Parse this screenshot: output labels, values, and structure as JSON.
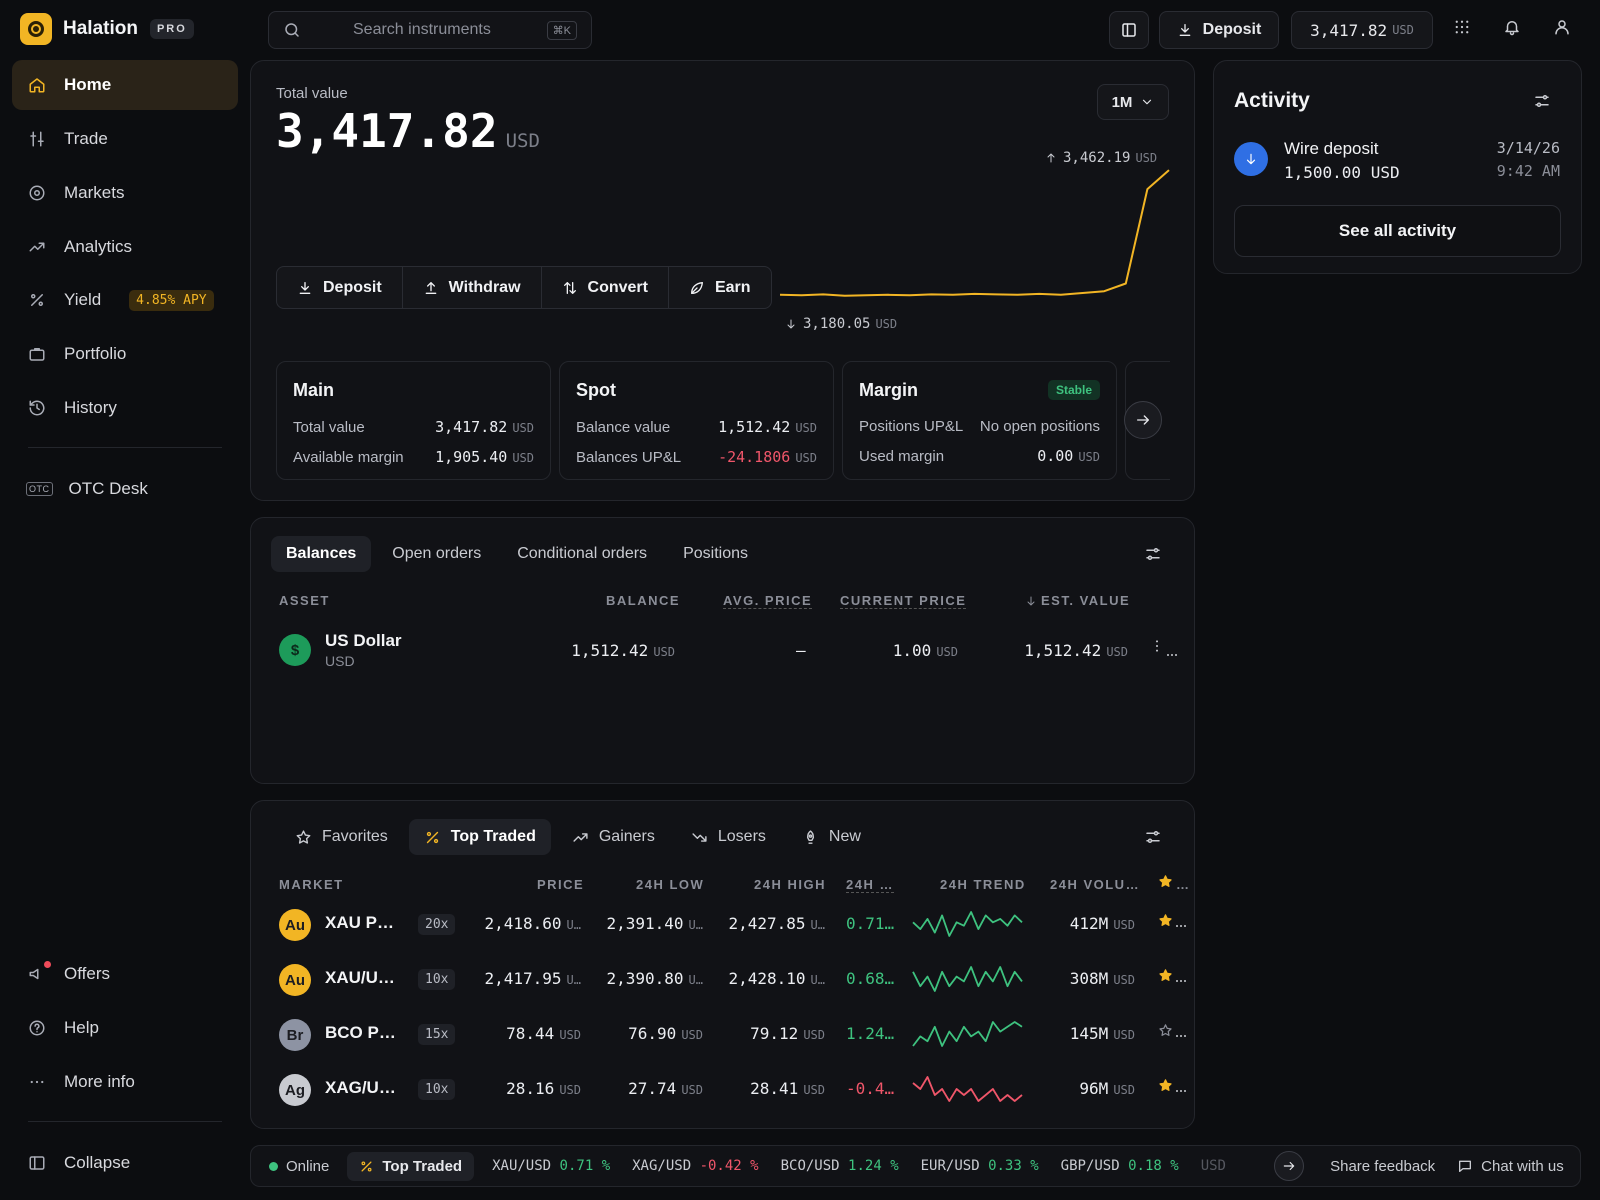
{
  "brand": {
    "name": "Halation",
    "badge": "PRO"
  },
  "nav": {
    "items": [
      {
        "label": "Home",
        "icon": "home-icon"
      },
      {
        "label": "Trade",
        "icon": "trade-icon"
      },
      {
        "label": "Markets",
        "icon": "markets-icon"
      },
      {
        "label": "Analytics",
        "icon": "analytics-icon"
      },
      {
        "label": "Yield",
        "icon": "percent-icon",
        "badge": "4.85% APY"
      },
      {
        "label": "Portfolio",
        "icon": "briefcase-icon"
      },
      {
        "label": "History",
        "icon": "history-icon"
      }
    ],
    "otc": {
      "label": "OTC Desk",
      "icon_text": "OTC"
    },
    "bottom": [
      {
        "label": "Offers",
        "icon": "megaphone-icon"
      },
      {
        "label": "Help",
        "icon": "help-icon"
      },
      {
        "label": "More info",
        "icon": "more-icon"
      }
    ],
    "collapse": "Collapse"
  },
  "topbar": {
    "search_placeholder": "Search instruments",
    "search_kbd": "⌘K",
    "deposit_label": "Deposit",
    "balance_value": "3,417.82",
    "balance_unit": "USD"
  },
  "overview": {
    "total_label": "Total value",
    "total_value": "3,417.82",
    "total_unit": "USD",
    "range": "1M",
    "high_value": "3,462.19",
    "high_unit": "USD",
    "low_value": "3,180.05",
    "low_unit": "USD",
    "actions": [
      "Deposit",
      "Withdraw",
      "Convert",
      "Earn"
    ]
  },
  "chart_data": {
    "type": "line",
    "values": [
      3187,
      3186,
      3188,
      3185,
      3186,
      3187,
      3186,
      3188,
      3187,
      3189,
      3188,
      3187,
      3189,
      3187,
      3191,
      3195,
      3212,
      3420,
      3462
    ],
    "ylim": [
      3180.05,
      3462.19
    ],
    "color": "#f2b524"
  },
  "accounts": [
    {
      "title": "Main",
      "rows": [
        {
          "label": "Total value",
          "value": "3,417.82",
          "unit": "USD"
        },
        {
          "label": "Available margin",
          "value": "1,905.40",
          "unit": "USD"
        }
      ]
    },
    {
      "title": "Spot",
      "rows": [
        {
          "label": "Balance value",
          "value": "1,512.42",
          "unit": "USD"
        },
        {
          "label": "Balances UP&L",
          "value": "-24.1806",
          "unit": "USD"
        }
      ]
    },
    {
      "title": "Margin",
      "badge": "Stable",
      "rows": [
        {
          "label": "Positions UP&L",
          "value": "No open positions",
          "unit": ""
        },
        {
          "label": "Used margin",
          "value": "0.00",
          "unit": "USD"
        }
      ]
    }
  ],
  "balances": {
    "tabs": [
      "Balances",
      "Open orders",
      "Conditional orders",
      "Positions"
    ],
    "columns": [
      "ASSET",
      "BALANCE",
      "AVG. PRICE",
      "CURRENT PRICE",
      "EST. VALUE"
    ],
    "rows": [
      {
        "name": "US Dollar",
        "code": "USD",
        "symbol": "$",
        "balance": "1,512.42",
        "unit": "USD",
        "avg_price": "—",
        "current_price": "1.00",
        "est_value": "1,512.42"
      }
    ]
  },
  "markets": {
    "tabs": [
      {
        "label": "Favorites",
        "icon": "star-icon"
      },
      {
        "label": "Top Traded",
        "icon": "percent-icon"
      },
      {
        "label": "Gainers",
        "icon": "trend-up-icon"
      },
      {
        "label": "Losers",
        "icon": "trend-down-icon"
      },
      {
        "label": "New",
        "icon": "rocket-icon"
      }
    ],
    "columns": [
      "MARKET",
      "PRICE",
      "24H LOW",
      "24H HIGH",
      "24H …",
      "24H TREND",
      "24H VOLU…",
      "…"
    ],
    "rows": [
      {
        "symbol": "Au",
        "name": "XAU P…",
        "lev": "20x",
        "price": "2,418.60",
        "price_unit": "U…",
        "low": "2,391.40",
        "low_unit": "U…",
        "high": "2,427.85",
        "high_unit": "U…",
        "change": "0.71…",
        "dir": "up",
        "trend": [
          5,
          3,
          6,
          2,
          7,
          1,
          5,
          4,
          8,
          3,
          7,
          5,
          6,
          4,
          7,
          5
        ],
        "volume": "412M",
        "vol_unit": "USD",
        "fav": true,
        "coin_color": "#f2b524"
      },
      {
        "symbol": "Au",
        "name": "XAU/U…",
        "lev": "10x",
        "price": "2,417.95",
        "price_unit": "U…",
        "low": "2,390.80",
        "low_unit": "U…",
        "high": "2,428.10",
        "high_unit": "U…",
        "change": "0.68…",
        "dir": "up",
        "trend": [
          6,
          3,
          5,
          2,
          6,
          3,
          5,
          4,
          7,
          3,
          6,
          4,
          7,
          3,
          6,
          4
        ],
        "volume": "308M",
        "vol_unit": "USD",
        "fav": true,
        "coin_color": "#f2b524"
      },
      {
        "symbol": "Br",
        "name": "BCO P…",
        "lev": "15x",
        "price": "78.44",
        "price_unit": "USD",
        "low": "76.90",
        "low_unit": "USD",
        "high": "79.12",
        "high_unit": "USD",
        "change": "1.24…",
        "dir": "up",
        "trend": [
          2,
          4,
          3,
          6,
          2,
          5,
          3,
          6,
          4,
          5,
          3,
          7,
          5,
          6,
          7,
          6
        ],
        "volume": "145M",
        "vol_unit": "USD",
        "fav": false,
        "coin_color": "#8d93a3"
      },
      {
        "symbol": "Ag",
        "name": "XAG/U…",
        "lev": "10x",
        "price": "28.16",
        "price_unit": "USD",
        "low": "27.74",
        "low_unit": "USD",
        "high": "28.41",
        "high_unit": "USD",
        "change": "-0.4…",
        "dir": "down",
        "trend": [
          6,
          5,
          7,
          4,
          5,
          3,
          5,
          4,
          5,
          3,
          4,
          5,
          3,
          4,
          3,
          4
        ],
        "volume": "96M",
        "vol_unit": "USD",
        "fav": true,
        "coin_color": "#c8cad0"
      }
    ]
  },
  "activity": {
    "title": "Activity",
    "item": {
      "title": "Wire deposit",
      "amount": "1,500.00 USD",
      "date": "3/14/26",
      "time": "9:42 AM"
    },
    "see_all": "See all activity"
  },
  "footer": {
    "status": "Online",
    "tab": "Top Traded",
    "tickers": [
      {
        "pair": "XAU/USD",
        "change": "0.71 %",
        "dir": "up"
      },
      {
        "pair": "XAG/USD",
        "change": "-0.42 %",
        "dir": "down"
      },
      {
        "pair": "BCO/USD",
        "change": "1.24 %",
        "dir": "up"
      },
      {
        "pair": "EUR/USD",
        "change": "0.33 %",
        "dir": "up"
      },
      {
        "pair": "GBP/USD",
        "change": "0.18 %",
        "dir": "up"
      }
    ],
    "ticker_tail": "USD",
    "feedback": "Share feedback",
    "chat": "Chat with us"
  }
}
